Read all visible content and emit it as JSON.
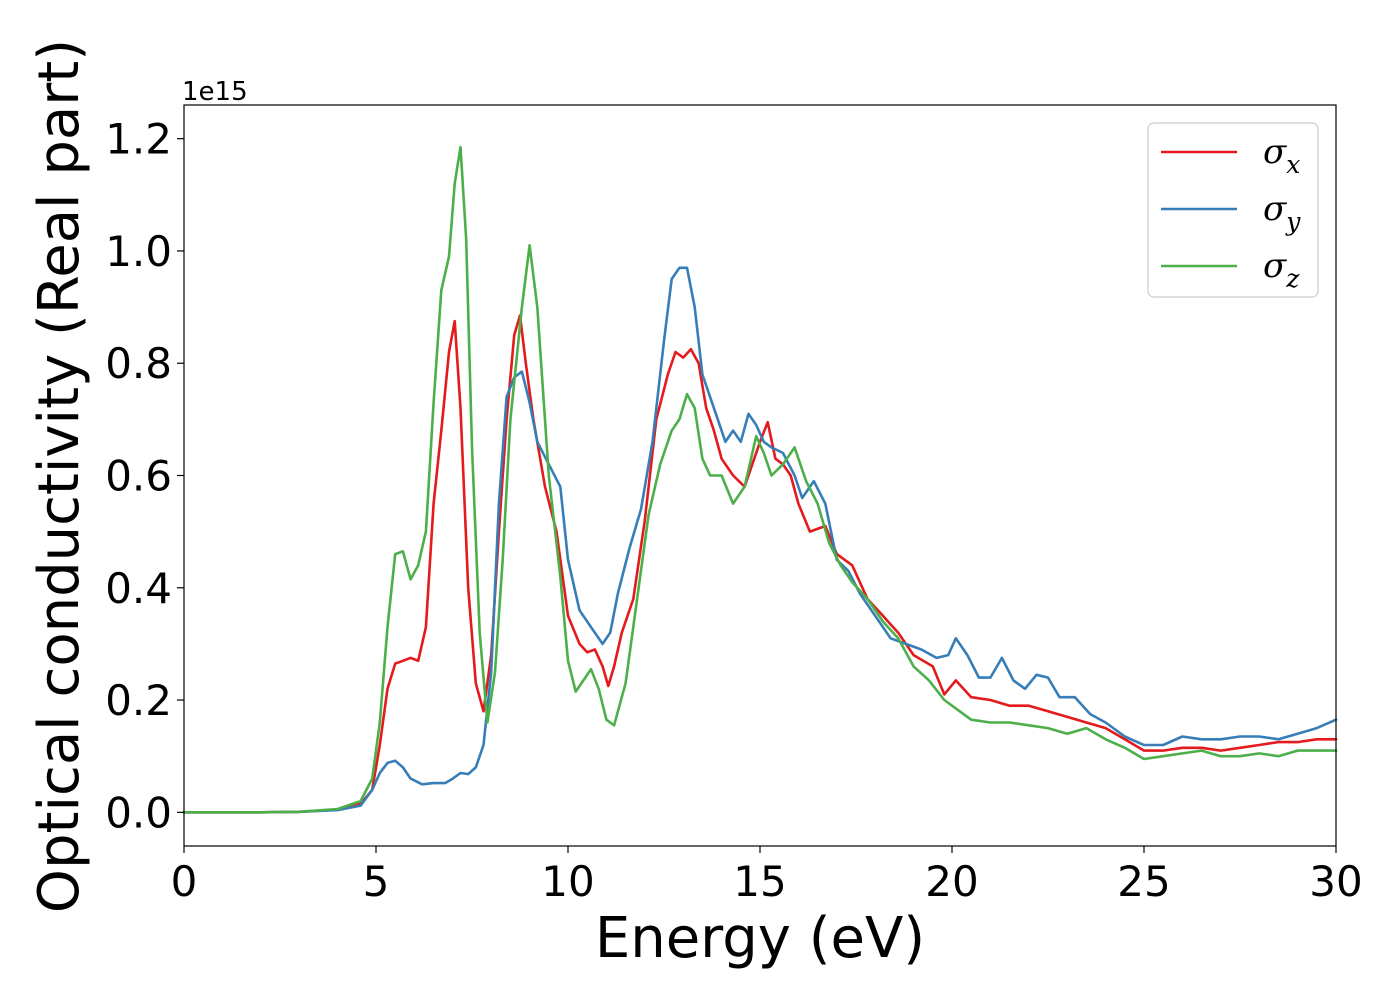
{
  "chart_data": {
    "type": "line",
    "title": "",
    "xlabel": "Energy (eV)",
    "ylabel": "Optical conductivity (Real part)",
    "y_offset_label": "1e15",
    "xlim": [
      0,
      30
    ],
    "ylim": [
      -0.06,
      1.26
    ],
    "xticks": [
      0,
      5,
      10,
      15,
      20,
      25,
      30
    ],
    "xtick_labels": [
      "0",
      "5",
      "10",
      "15",
      "20",
      "25",
      "30"
    ],
    "yticks": [
      0.0,
      0.2,
      0.4,
      0.6,
      0.8,
      1.0,
      1.2
    ],
    "ytick_labels": [
      "0.0",
      "0.2",
      "0.4",
      "0.6",
      "0.8",
      "1.0",
      "1.2"
    ],
    "grid": false,
    "legend_position": "top-right",
    "series": [
      {
        "name": "σx",
        "legend_base": "σ",
        "legend_sub": "x",
        "color": "#e41a1c",
        "points": [
          [
            0,
            0.0
          ],
          [
            2,
            0.0
          ],
          [
            3,
            0.001
          ],
          [
            4,
            0.005
          ],
          [
            4.6,
            0.015
          ],
          [
            4.9,
            0.04
          ],
          [
            5.1,
            0.12
          ],
          [
            5.3,
            0.22
          ],
          [
            5.5,
            0.265
          ],
          [
            5.7,
            0.27
          ],
          [
            5.9,
            0.275
          ],
          [
            6.1,
            0.27
          ],
          [
            6.3,
            0.33
          ],
          [
            6.5,
            0.55
          ],
          [
            6.7,
            0.68
          ],
          [
            6.9,
            0.82
          ],
          [
            7.05,
            0.875
          ],
          [
            7.2,
            0.72
          ],
          [
            7.4,
            0.4
          ],
          [
            7.6,
            0.23
          ],
          [
            7.8,
            0.18
          ],
          [
            8.0,
            0.28
          ],
          [
            8.2,
            0.5
          ],
          [
            8.4,
            0.7
          ],
          [
            8.6,
            0.85
          ],
          [
            8.75,
            0.885
          ],
          [
            8.9,
            0.8
          ],
          [
            9.1,
            0.7
          ],
          [
            9.4,
            0.58
          ],
          [
            9.7,
            0.5
          ],
          [
            10.0,
            0.35
          ],
          [
            10.3,
            0.3
          ],
          [
            10.5,
            0.285
          ],
          [
            10.7,
            0.29
          ],
          [
            10.9,
            0.26
          ],
          [
            11.05,
            0.225
          ],
          [
            11.2,
            0.26
          ],
          [
            11.4,
            0.32
          ],
          [
            11.7,
            0.38
          ],
          [
            12.0,
            0.52
          ],
          [
            12.3,
            0.7
          ],
          [
            12.6,
            0.78
          ],
          [
            12.8,
            0.82
          ],
          [
            13.0,
            0.81
          ],
          [
            13.2,
            0.825
          ],
          [
            13.4,
            0.8
          ],
          [
            13.6,
            0.72
          ],
          [
            13.8,
            0.68
          ],
          [
            14.0,
            0.63
          ],
          [
            14.3,
            0.6
          ],
          [
            14.6,
            0.58
          ],
          [
            14.8,
            0.62
          ],
          [
            15.0,
            0.66
          ],
          [
            15.2,
            0.695
          ],
          [
            15.4,
            0.63
          ],
          [
            15.6,
            0.62
          ],
          [
            15.8,
            0.6
          ],
          [
            16.0,
            0.55
          ],
          [
            16.3,
            0.5
          ],
          [
            16.7,
            0.51
          ],
          [
            17.0,
            0.46
          ],
          [
            17.4,
            0.44
          ],
          [
            17.8,
            0.38
          ],
          [
            18.2,
            0.35
          ],
          [
            18.6,
            0.32
          ],
          [
            19.0,
            0.28
          ],
          [
            19.5,
            0.26
          ],
          [
            19.8,
            0.21
          ],
          [
            20.1,
            0.235
          ],
          [
            20.5,
            0.205
          ],
          [
            21.0,
            0.2
          ],
          [
            21.5,
            0.19
          ],
          [
            22.0,
            0.19
          ],
          [
            22.5,
            0.18
          ],
          [
            23.0,
            0.17
          ],
          [
            23.5,
            0.16
          ],
          [
            24.0,
            0.15
          ],
          [
            24.5,
            0.13
          ],
          [
            25.0,
            0.11
          ],
          [
            25.5,
            0.11
          ],
          [
            26.0,
            0.115
          ],
          [
            26.5,
            0.115
          ],
          [
            27.0,
            0.11
          ],
          [
            27.5,
            0.115
          ],
          [
            28.0,
            0.12
          ],
          [
            28.5,
            0.125
          ],
          [
            29.0,
            0.125
          ],
          [
            29.5,
            0.13
          ],
          [
            30.0,
            0.13
          ]
        ]
      },
      {
        "name": "σy",
        "legend_base": "σ",
        "legend_sub": "y",
        "color": "#377eb8",
        "points": [
          [
            0,
            0.0
          ],
          [
            2,
            0.0
          ],
          [
            3,
            0.001
          ],
          [
            4,
            0.004
          ],
          [
            4.6,
            0.012
          ],
          [
            4.9,
            0.04
          ],
          [
            5.1,
            0.07
          ],
          [
            5.3,
            0.088
          ],
          [
            5.5,
            0.092
          ],
          [
            5.7,
            0.08
          ],
          [
            5.9,
            0.06
          ],
          [
            6.2,
            0.05
          ],
          [
            6.5,
            0.052
          ],
          [
            6.8,
            0.052
          ],
          [
            7.0,
            0.06
          ],
          [
            7.2,
            0.07
          ],
          [
            7.4,
            0.068
          ],
          [
            7.6,
            0.08
          ],
          [
            7.8,
            0.12
          ],
          [
            8.0,
            0.25
          ],
          [
            8.2,
            0.55
          ],
          [
            8.4,
            0.74
          ],
          [
            8.6,
            0.775
          ],
          [
            8.8,
            0.785
          ],
          [
            9.0,
            0.73
          ],
          [
            9.2,
            0.66
          ],
          [
            9.5,
            0.62
          ],
          [
            9.8,
            0.58
          ],
          [
            10.0,
            0.45
          ],
          [
            10.3,
            0.36
          ],
          [
            10.6,
            0.33
          ],
          [
            10.9,
            0.3
          ],
          [
            11.1,
            0.32
          ],
          [
            11.3,
            0.39
          ],
          [
            11.6,
            0.47
          ],
          [
            11.9,
            0.54
          ],
          [
            12.2,
            0.66
          ],
          [
            12.5,
            0.84
          ],
          [
            12.7,
            0.95
          ],
          [
            12.9,
            0.97
          ],
          [
            13.1,
            0.97
          ],
          [
            13.3,
            0.9
          ],
          [
            13.5,
            0.78
          ],
          [
            13.8,
            0.72
          ],
          [
            14.1,
            0.66
          ],
          [
            14.3,
            0.68
          ],
          [
            14.5,
            0.66
          ],
          [
            14.7,
            0.71
          ],
          [
            14.9,
            0.69
          ],
          [
            15.1,
            0.66
          ],
          [
            15.3,
            0.65
          ],
          [
            15.6,
            0.64
          ],
          [
            15.9,
            0.6
          ],
          [
            16.1,
            0.56
          ],
          [
            16.4,
            0.59
          ],
          [
            16.7,
            0.55
          ],
          [
            17.0,
            0.45
          ],
          [
            17.3,
            0.43
          ],
          [
            17.6,
            0.39
          ],
          [
            18.0,
            0.35
          ],
          [
            18.4,
            0.31
          ],
          [
            18.8,
            0.3
          ],
          [
            19.2,
            0.29
          ],
          [
            19.6,
            0.275
          ],
          [
            19.9,
            0.28
          ],
          [
            20.1,
            0.31
          ],
          [
            20.4,
            0.28
          ],
          [
            20.7,
            0.24
          ],
          [
            21.0,
            0.24
          ],
          [
            21.3,
            0.275
          ],
          [
            21.6,
            0.235
          ],
          [
            21.9,
            0.22
          ],
          [
            22.2,
            0.245
          ],
          [
            22.5,
            0.24
          ],
          [
            22.8,
            0.205
          ],
          [
            23.2,
            0.205
          ],
          [
            23.6,
            0.175
          ],
          [
            24.0,
            0.16
          ],
          [
            24.5,
            0.135
          ],
          [
            25.0,
            0.12
          ],
          [
            25.5,
            0.12
          ],
          [
            26.0,
            0.135
          ],
          [
            26.5,
            0.13
          ],
          [
            27.0,
            0.13
          ],
          [
            27.5,
            0.135
          ],
          [
            28.0,
            0.135
          ],
          [
            28.5,
            0.13
          ],
          [
            29.0,
            0.14
          ],
          [
            29.5,
            0.15
          ],
          [
            30.0,
            0.165
          ]
        ]
      },
      {
        "name": "σz",
        "legend_base": "σ",
        "legend_sub": "z",
        "color": "#4daf4a",
        "points": [
          [
            0,
            0.0
          ],
          [
            2,
            0.0
          ],
          [
            3,
            0.001
          ],
          [
            4,
            0.006
          ],
          [
            4.6,
            0.02
          ],
          [
            4.9,
            0.06
          ],
          [
            5.1,
            0.16
          ],
          [
            5.3,
            0.33
          ],
          [
            5.5,
            0.46
          ],
          [
            5.7,
            0.465
          ],
          [
            5.9,
            0.415
          ],
          [
            6.1,
            0.44
          ],
          [
            6.3,
            0.5
          ],
          [
            6.5,
            0.73
          ],
          [
            6.7,
            0.93
          ],
          [
            6.9,
            0.99
          ],
          [
            7.05,
            1.12
          ],
          [
            7.2,
            1.185
          ],
          [
            7.35,
            1.02
          ],
          [
            7.5,
            0.65
          ],
          [
            7.7,
            0.32
          ],
          [
            7.9,
            0.16
          ],
          [
            8.1,
            0.25
          ],
          [
            8.3,
            0.45
          ],
          [
            8.5,
            0.7
          ],
          [
            8.8,
            0.9
          ],
          [
            9.0,
            1.01
          ],
          [
            9.2,
            0.9
          ],
          [
            9.5,
            0.6
          ],
          [
            9.8,
            0.42
          ],
          [
            10.0,
            0.27
          ],
          [
            10.2,
            0.215
          ],
          [
            10.4,
            0.235
          ],
          [
            10.6,
            0.255
          ],
          [
            10.8,
            0.22
          ],
          [
            11.0,
            0.165
          ],
          [
            11.2,
            0.155
          ],
          [
            11.5,
            0.23
          ],
          [
            11.8,
            0.38
          ],
          [
            12.1,
            0.53
          ],
          [
            12.4,
            0.62
          ],
          [
            12.7,
            0.68
          ],
          [
            12.9,
            0.7
          ],
          [
            13.1,
            0.745
          ],
          [
            13.3,
            0.72
          ],
          [
            13.5,
            0.63
          ],
          [
            13.7,
            0.6
          ],
          [
            14.0,
            0.6
          ],
          [
            14.3,
            0.55
          ],
          [
            14.6,
            0.58
          ],
          [
            14.9,
            0.67
          ],
          [
            15.1,
            0.64
          ],
          [
            15.3,
            0.6
          ],
          [
            15.6,
            0.62
          ],
          [
            15.9,
            0.65
          ],
          [
            16.2,
            0.59
          ],
          [
            16.5,
            0.55
          ],
          [
            16.8,
            0.48
          ],
          [
            17.1,
            0.44
          ],
          [
            17.4,
            0.41
          ],
          [
            17.8,
            0.38
          ],
          [
            18.2,
            0.34
          ],
          [
            18.6,
            0.31
          ],
          [
            19.0,
            0.26
          ],
          [
            19.4,
            0.235
          ],
          [
            19.8,
            0.2
          ],
          [
            20.2,
            0.18
          ],
          [
            20.5,
            0.165
          ],
          [
            21.0,
            0.16
          ],
          [
            21.5,
            0.16
          ],
          [
            22.0,
            0.155
          ],
          [
            22.5,
            0.15
          ],
          [
            23.0,
            0.14
          ],
          [
            23.5,
            0.15
          ],
          [
            24.0,
            0.13
          ],
          [
            24.5,
            0.115
          ],
          [
            25.0,
            0.095
          ],
          [
            25.5,
            0.1
          ],
          [
            26.0,
            0.105
          ],
          [
            26.5,
            0.11
          ],
          [
            27.0,
            0.1
          ],
          [
            27.5,
            0.1
          ],
          [
            28.0,
            0.105
          ],
          [
            28.5,
            0.1
          ],
          [
            29.0,
            0.11
          ],
          [
            29.5,
            0.11
          ],
          [
            30.0,
            0.11
          ]
        ]
      }
    ]
  }
}
